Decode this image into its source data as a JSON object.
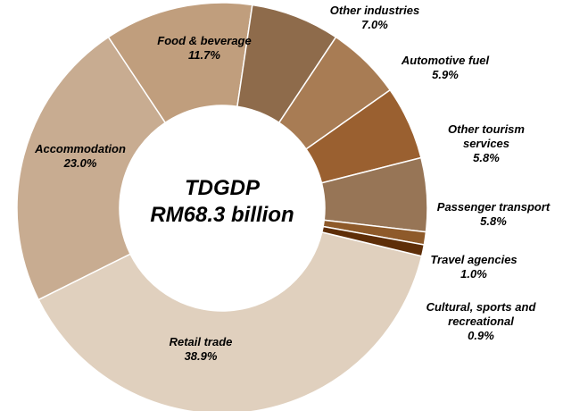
{
  "chart_data": {
    "type": "pie",
    "variant": "donut",
    "center_text": [
      "TDGDP",
      "RM68.3 billion"
    ],
    "categories": [
      "Retail trade",
      "Accommodation",
      "Food & beverage",
      "Other industries",
      "Automotive fuel",
      "Other tourism services",
      "Passenger transport",
      "Travel agencies",
      "Cultural, sports and recreational"
    ],
    "values": [
      38.9,
      23.0,
      11.7,
      7.0,
      5.9,
      5.8,
      5.8,
      1.0,
      0.9
    ],
    "value_labels": [
      "38.9%",
      "23.0%",
      "11.7%",
      "7.0%",
      "5.9%",
      "5.8%",
      "5.8%",
      "1.0%",
      "0.9%"
    ],
    "label_lines": [
      [
        "Retail trade",
        "38.9%"
      ],
      [
        "Accommodation",
        "23.0%"
      ],
      [
        "Food & beverage",
        "11.7%"
      ],
      [
        "Other industries",
        "7.0%"
      ],
      [
        "Automotive fuel",
        "5.9%"
      ],
      [
        "Other tourism",
        "services",
        "5.8%"
      ],
      [
        "Passenger transport",
        "5.8%"
      ],
      [
        "Travel agencies",
        "1.0%"
      ],
      [
        "Cultural, sports and",
        "recreational",
        "0.9%"
      ]
    ],
    "colors": [
      "#E0D0BE",
      "#C8AC91",
      "#C09E7D",
      "#8E6B4B",
      "#A87C54",
      "#9A6030",
      "#977556",
      "#8E5A2A",
      "#5E2E08"
    ],
    "title": "",
    "legend": "none"
  }
}
